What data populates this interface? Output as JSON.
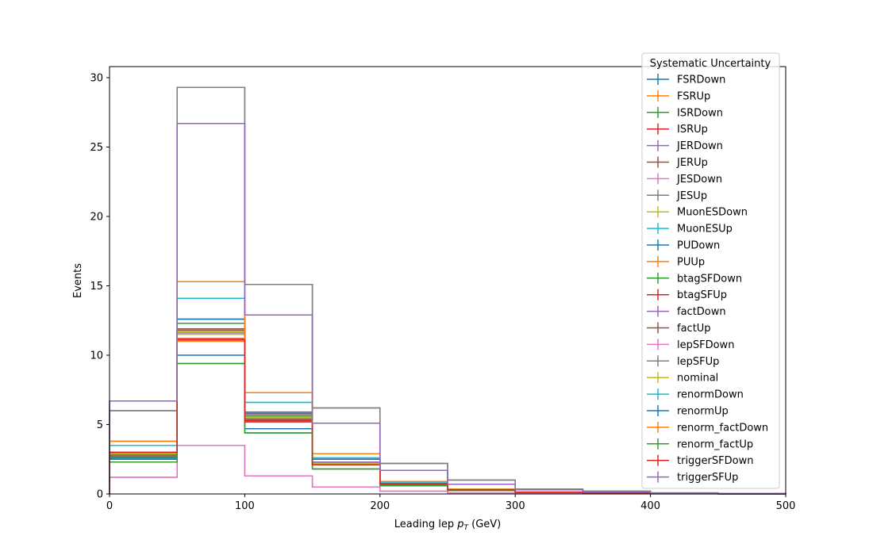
{
  "chart_data": {
    "type": "histogram",
    "xlabel": "Leading lep pT (GeV)",
    "ylabel": "Events",
    "xlim": [
      0,
      500
    ],
    "ylim": [
      0,
      30.8
    ],
    "xticks": [
      0,
      100,
      200,
      300,
      400,
      500
    ],
    "yticks": [
      0,
      5,
      10,
      15,
      20,
      25,
      30
    ],
    "grid": false,
    "legend": {
      "title": "Systematic Uncertainty",
      "placement": "top-right"
    },
    "bin_edges": [
      0,
      50,
      100,
      150,
      200,
      250,
      300,
      350,
      400,
      450,
      500
    ],
    "series": [
      {
        "name": "FSRDown",
        "color": "#1f77b4",
        "values": [
          2.5,
          10.0,
          4.7,
          2.2,
          0.6,
          0.25,
          0.12,
          0.07,
          0.03,
          0.01
        ]
      },
      {
        "name": "FSRUp",
        "color": "#ff7f0e",
        "values": [
          3.8,
          15.3,
          7.3,
          2.9,
          0.9,
          0.35,
          0.14,
          0.08,
          0.03,
          0.01
        ]
      },
      {
        "name": "ISRDown",
        "color": "#2ca02c",
        "values": [
          2.7,
          12.3,
          5.6,
          2.3,
          0.7,
          0.3,
          0.12,
          0.07,
          0.03,
          0.01
        ]
      },
      {
        "name": "ISRUp",
        "color": "#d62728",
        "values": [
          2.8,
          11.2,
          5.3,
          2.1,
          0.7,
          0.3,
          0.12,
          0.07,
          0.03,
          0.01
        ]
      },
      {
        "name": "JERDown",
        "color": "#9467bd",
        "values": [
          3.0,
          11.6,
          5.7,
          2.3,
          0.7,
          0.3,
          0.12,
          0.07,
          0.03,
          0.01
        ]
      },
      {
        "name": "JERUp",
        "color": "#8c564b",
        "values": [
          2.9,
          11.8,
          5.8,
          2.2,
          0.7,
          0.3,
          0.12,
          0.07,
          0.03,
          0.01
        ]
      },
      {
        "name": "JESDown",
        "color": "#e377c2",
        "values": [
          1.2,
          3.5,
          1.3,
          0.5,
          0.2,
          0.08,
          0.04,
          0.02,
          0.01,
          0.01
        ]
      },
      {
        "name": "JESUp",
        "color": "#7f7f7f",
        "values": [
          6.0,
          29.3,
          15.1,
          6.2,
          2.2,
          1.0,
          0.35,
          0.2,
          0.08,
          0.03
        ]
      },
      {
        "name": "MuonESDown",
        "color": "#bcbd22",
        "values": [
          2.8,
          11.5,
          5.5,
          2.2,
          0.7,
          0.3,
          0.12,
          0.07,
          0.03,
          0.01
        ]
      },
      {
        "name": "MuonESUp",
        "color": "#17becf",
        "values": [
          3.5,
          14.1,
          6.6,
          2.6,
          0.8,
          0.35,
          0.13,
          0.08,
          0.03,
          0.01
        ]
      },
      {
        "name": "PUDown",
        "color": "#1f77b4",
        "values": [
          2.6,
          12.6,
          5.9,
          2.5,
          0.75,
          0.3,
          0.12,
          0.07,
          0.03,
          0.01
        ]
      },
      {
        "name": "PUUp",
        "color": "#ff7f0e",
        "values": [
          2.9,
          11.0,
          5.4,
          2.2,
          0.75,
          0.3,
          0.12,
          0.07,
          0.03,
          0.01
        ]
      },
      {
        "name": "btagSFDown",
        "color": "#2ca02c",
        "values": [
          2.3,
          9.4,
          4.4,
          1.8,
          0.6,
          0.25,
          0.1,
          0.06,
          0.02,
          0.01
        ]
      },
      {
        "name": "btagSFUp",
        "color": "#d62728",
        "values": [
          3.0,
          11.1,
          5.2,
          2.1,
          0.7,
          0.3,
          0.12,
          0.07,
          0.03,
          0.01
        ]
      },
      {
        "name": "factDown",
        "color": "#9467bd",
        "values": [
          6.7,
          26.7,
          12.9,
          5.1,
          1.7,
          0.7,
          0.3,
          0.15,
          0.06,
          0.02
        ]
      },
      {
        "name": "factUp",
        "color": "#8c564b",
        "values": [
          2.8,
          11.9,
          5.4,
          2.1,
          0.7,
          0.3,
          0.12,
          0.07,
          0.03,
          0.01
        ]
      },
      {
        "name": "lepSFDown",
        "color": "#e377c2",
        "values": [
          1.2,
          3.5,
          1.3,
          0.5,
          0.2,
          0.08,
          0.04,
          0.02,
          0.01,
          0.01
        ]
      },
      {
        "name": "lepSFUp",
        "color": "#7f7f7f",
        "values": [
          6.0,
          29.3,
          15.1,
          6.2,
          2.2,
          1.0,
          0.35,
          0.2,
          0.08,
          0.03
        ]
      },
      {
        "name": "nominal",
        "color": "#bcbd22",
        "values": [
          2.9,
          11.7,
          5.5,
          2.2,
          0.75,
          0.3,
          0.12,
          0.07,
          0.03,
          0.01
        ]
      },
      {
        "name": "renormDown",
        "color": "#17becf",
        "values": [
          3.5,
          14.1,
          6.6,
          2.6,
          0.8,
          0.35,
          0.13,
          0.08,
          0.03,
          0.01
        ]
      },
      {
        "name": "renormUp",
        "color": "#1f77b4",
        "values": [
          2.6,
          12.6,
          5.9,
          2.5,
          0.75,
          0.3,
          0.12,
          0.07,
          0.03,
          0.01
        ]
      },
      {
        "name": "renorm_factDown",
        "color": "#ff7f0e",
        "values": [
          3.8,
          15.3,
          7.3,
          2.9,
          0.9,
          0.35,
          0.14,
          0.08,
          0.03,
          0.01
        ]
      },
      {
        "name": "renorm_factUp",
        "color": "#2ca02c",
        "values": [
          2.3,
          9.4,
          4.4,
          1.8,
          0.6,
          0.25,
          0.1,
          0.06,
          0.02,
          0.01
        ]
      },
      {
        "name": "triggerSFDown",
        "color": "#d62728",
        "values": [
          3.0,
          11.1,
          5.2,
          2.1,
          0.7,
          0.3,
          0.12,
          0.07,
          0.03,
          0.01
        ]
      },
      {
        "name": "triggerSFUp",
        "color": "#9467bd",
        "values": [
          6.7,
          26.7,
          12.9,
          5.1,
          1.7,
          0.7,
          0.3,
          0.15,
          0.06,
          0.02
        ]
      }
    ]
  }
}
